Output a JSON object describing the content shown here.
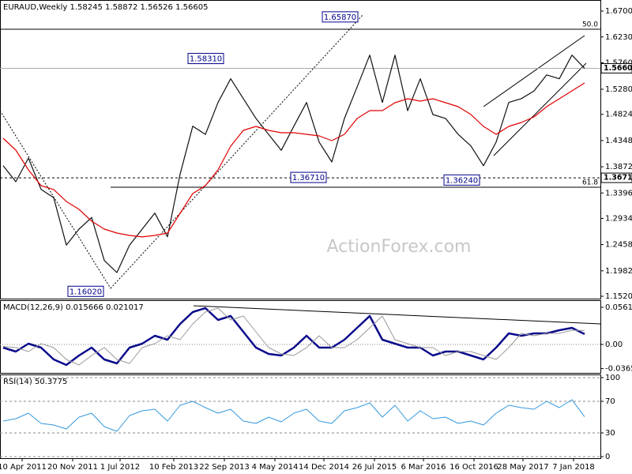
{
  "watermark": "ActionForex.com",
  "chart_data": [
    {
      "type": "line",
      "title": "EURAUD,Weekly  1.58245 1.58872 1.56526 1.56605",
      "x": [
        0,
        8,
        16,
        24,
        32,
        40,
        48,
        56,
        64,
        72,
        80,
        88,
        96,
        104,
        112,
        120,
        128,
        136,
        144,
        152,
        160,
        168,
        176,
        184,
        192,
        200,
        208,
        216,
        224,
        232,
        240,
        248,
        256,
        264,
        272,
        280,
        288,
        296,
        304,
        312,
        320,
        328,
        336,
        344,
        352,
        360,
        368
      ],
      "series": [
        {
          "color": "#111111",
          "values": [
            1.389,
            1.36,
            1.403,
            1.346,
            1.331,
            1.245,
            1.274,
            1.295,
            1.217,
            1.195,
            1.245,
            1.274,
            1.303,
            1.26,
            1.374,
            1.461,
            1.446,
            1.504,
            1.547,
            1.511,
            1.475,
            1.446,
            1.417,
            1.461,
            1.504,
            1.432,
            1.396,
            1.475,
            1.532,
            1.59,
            1.504,
            1.59,
            1.489,
            1.547,
            1.482,
            1.475,
            1.446,
            1.425,
            1.389,
            1.432,
            1.504,
            1.511,
            1.525,
            1.554,
            1.547,
            1.59,
            1.56605
          ]
        },
        {
          "color": "#e00000",
          "values": [
            1.439,
            1.4175,
            1.3816,
            1.3529,
            1.3458,
            1.3242,
            1.3099,
            1.2884,
            1.274,
            1.2668,
            1.2625,
            1.2597,
            1.2625,
            1.2668,
            1.3027,
            1.3386,
            1.3529,
            1.3816,
            1.4247,
            1.4534,
            1.4605,
            1.4534,
            1.449,
            1.449,
            1.4462,
            1.4433,
            1.4347,
            1.4462,
            1.4749,
            1.4892,
            1.4892,
            1.5036,
            1.5107,
            1.5064,
            1.5107,
            1.5036,
            1.4964,
            1.4821,
            1.4605,
            1.4462,
            1.4605,
            1.4677,
            1.4777,
            1.4964,
            1.5107,
            1.5251,
            1.5394
          ]
        }
      ],
      "xlim": [
        -2,
        378
      ],
      "ylim": [
        1.152,
        1.67
      ],
      "yticks": [
        {
          "value": 1.67,
          "label": "1.67000"
        },
        {
          "value": 1.623,
          "label": "1.62300"
        },
        {
          "value": 1.576,
          "label": "1.57600"
        },
        {
          "value": 1.528,
          "label": "1.52800"
        },
        {
          "value": 1.4824,
          "label": "1.48240"
        },
        {
          "value": 1.4348,
          "label": "1.43480"
        },
        {
          "value": 1.3872,
          "label": "1.38720"
        },
        {
          "value": 1.3396,
          "label": "1.33960"
        },
        {
          "value": 1.2934,
          "label": "1.29340"
        },
        {
          "value": 1.2458,
          "label": "1.24580"
        },
        {
          "value": 1.1982,
          "label": "1.19820"
        },
        {
          "value": 1.152,
          "label": "1.15200"
        }
      ],
      "levels": [
        {
          "value": 1.637,
          "label": "50.0"
        },
        {
          "value": 1.35,
          "label": "61.8"
        }
      ],
      "price_markers": [
        {
          "value": 1.56605,
          "label": "1.56605",
          "line": "solid"
        },
        {
          "value": 1.3671,
          "label": "1.36710",
          "line": "dashed"
        }
      ],
      "annotations": [
        {
          "x": 225,
          "y": {
            "value": 1.6587,
            "label": "1.65870"
          }
        },
        {
          "x": 140,
          "y": {
            "value": 1.5831,
            "label": "1.58310"
          }
        },
        {
          "x": 205,
          "y": {
            "value": 1.3671,
            "label": "1.36710"
          }
        },
        {
          "x": 302,
          "y": {
            "value": 1.3624,
            "label": "1.36240"
          }
        },
        {
          "x": 64,
          "y": {
            "value": 1.1602,
            "label": "1.16020"
          }
        }
      ]
    },
    {
      "type": "line",
      "title": "MACD(12,26,9) 0.015666 0.021017",
      "series": [
        {
          "color": "#0a0a8c",
          "width": 2.5,
          "values": [
            -0.0048,
            -0.0108,
            0.0012,
            -0.0048,
            -0.0227,
            -0.0311,
            -0.0167,
            -0.0048,
            -0.0227,
            -0.0287,
            -0.0048,
            0.0012,
            0.0131,
            0.0072,
            0.0311,
            0.049,
            0.0549,
            0.037,
            0.043,
            0.0191,
            -0.0048,
            -0.0143,
            -0.0167,
            -0.0048,
            0.0131,
            -0.0048,
            -0.0048,
            0.0072,
            0.0251,
            0.043,
            0.0072,
            0.0012,
            -0.0048,
            -0.0048,
            -0.0167,
            -0.0108,
            -0.0108,
            -0.0167,
            -0.0227,
            -0.0048,
            0.0167,
            0.0131,
            0.0167,
            0.0167,
            0.0215,
            0.0251,
            0.015666
          ]
        },
        {
          "color": "#999999",
          "width": 1,
          "values": [
            -0.003,
            -0.0048,
            -0.0108,
            0.0012,
            -0.0048,
            -0.0227,
            -0.0311,
            -0.0167,
            -0.0048,
            -0.0227,
            -0.0287,
            -0.0048,
            0.0012,
            0.0131,
            0.0072,
            0.0311,
            0.049,
            0.0549,
            0.037,
            0.043,
            0.0191,
            -0.0048,
            -0.0143,
            -0.0167,
            -0.0048,
            0.0131,
            -0.0048,
            -0.0048,
            0.0072,
            0.0251,
            0.043,
            0.0072,
            0.0012,
            -0.0048,
            -0.0048,
            -0.0167,
            -0.0108,
            -0.0108,
            -0.0167,
            -0.0227,
            -0.0048,
            0.0167,
            0.0131,
            0.0167,
            0.0167,
            0.0215,
            0.021017
          ]
        }
      ],
      "ylim": [
        -0.0406,
        0.0657
      ],
      "yticks": [
        0.056148,
        {
          "value": 0,
          "label": "0.00"
        },
        -0.036548
      ],
      "zero_line": true
    },
    {
      "type": "line",
      "title": "RSI(14) 50.3775",
      "series": [
        {
          "color": "#3399dd",
          "width": 1,
          "values": [
            45,
            48,
            55,
            42,
            40,
            35,
            50,
            55,
            38,
            32,
            52,
            58,
            60,
            45,
            65,
            70,
            62,
            55,
            60,
            45,
            42,
            50,
            44,
            55,
            60,
            45,
            42,
            58,
            62,
            68,
            50,
            65,
            45,
            58,
            48,
            50,
            42,
            45,
            40,
            55,
            65,
            62,
            60,
            70,
            62,
            72,
            50.3775
          ]
        }
      ],
      "ylim": [
        -2,
        102
      ],
      "yticks": [
        100,
        70,
        30,
        0
      ],
      "grid": true,
      "xticks": [
        {
          "value": 12,
          "label": "10 Apr 2011"
        },
        {
          "value": 44,
          "label": "20 Nov 2011"
        },
        {
          "value": 74,
          "label": "1 Jul 2012"
        },
        {
          "value": 108,
          "label": "10 Feb 2013"
        },
        {
          "value": 140,
          "label": "22 Sep 2013"
        },
        {
          "value": 172,
          "label": "4 May 2014"
        },
        {
          "value": 203,
          "label": "14 Dec 2014"
        },
        {
          "value": 235,
          "label": "26 Jul 2015"
        },
        {
          "value": 266,
          "label": "6 Mar 2016"
        },
        {
          "value": 298,
          "label": "16 Oct 2016"
        },
        {
          "value": 329,
          "label": "28 May 2017"
        },
        {
          "value": 361,
          "label": "7 Jan 2018"
        }
      ]
    }
  ]
}
